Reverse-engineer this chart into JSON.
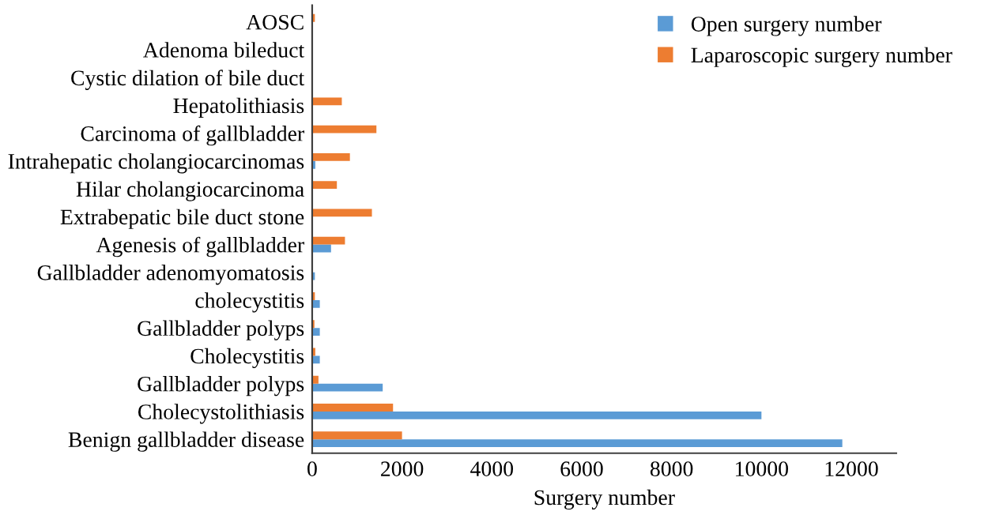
{
  "chart_data": {
    "type": "bar",
    "orientation": "horizontal",
    "xlabel": "Surgery number",
    "categories": [
      "AOSC",
      "Adenoma bileduct",
      "Cystic dilation of bile duct",
      "Hepatolithiasis",
      "Carcinoma of gallbladder",
      "Intrahepatic cholangiocarcinomas",
      "Hilar cholangiocarcinoma",
      "Extrabepatic bile duct stone",
      "Agenesis of gallbladder",
      "Gallbladder adenomyomatosis",
      "cholecystitis",
      "Gallbladder polyps",
      "Cholecystitis",
      "Gallbladder polyps",
      "Cholecystolithiasis",
      "Benign gallbladder disease"
    ],
    "series": [
      {
        "name": "Open surgery number",
        "color": "#5b9bd5",
        "values": [
          0,
          0,
          0,
          0,
          0,
          70,
          0,
          null,
          420,
          60,
          170,
          170,
          170,
          1570,
          10000,
          11800
        ]
      },
      {
        "name": "Laparoscopic surgery number",
        "color": "#ed7d31",
        "values": [
          60,
          null,
          null,
          660,
          1430,
          840,
          550,
          1330,
          730,
          0,
          60,
          50,
          70,
          140,
          1800,
          2000
        ]
      }
    ],
    "xlim": [
      0,
      13000
    ],
    "xticks": [
      0,
      2000,
      4000,
      6000,
      8000,
      10000,
      12000
    ],
    "grid": false,
    "legend": "top right"
  }
}
